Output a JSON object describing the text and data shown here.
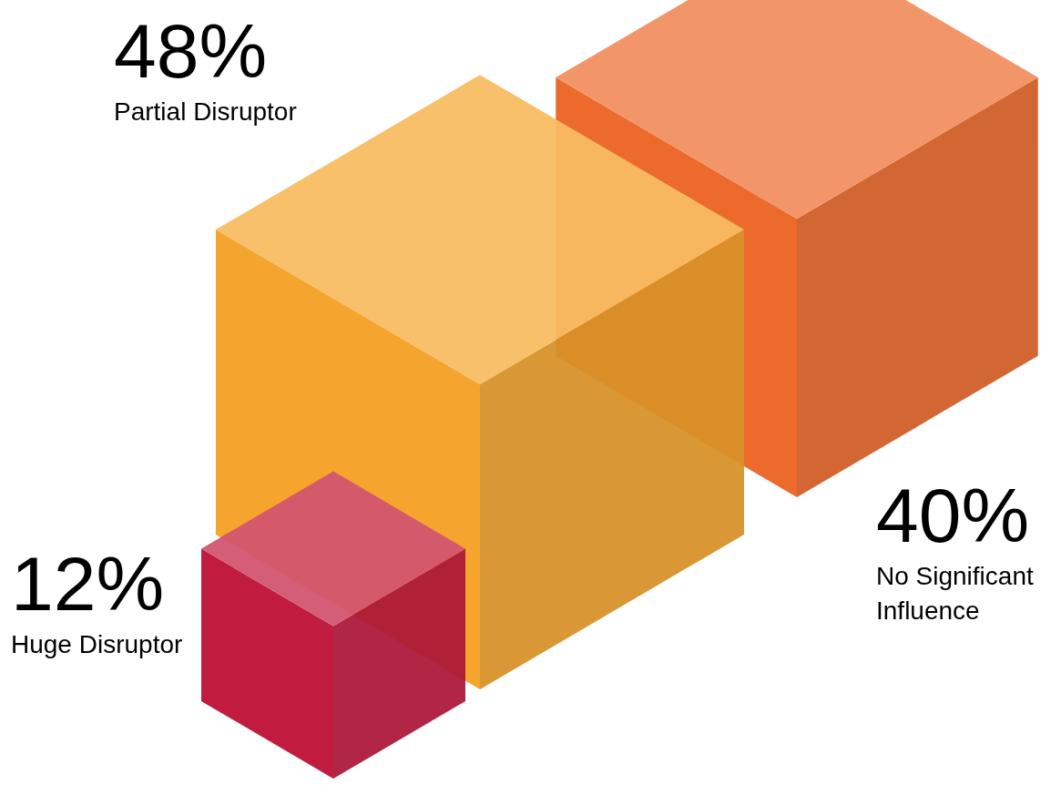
{
  "chart_data": {
    "type": "other",
    "categories": [
      "Partial Disruptor",
      "No Significant Influence",
      "Huge Disruptor"
    ],
    "values": [
      48,
      40,
      12
    ],
    "value_labels": [
      "48%",
      "40%",
      "12%"
    ],
    "colors": [
      "#f5a52e",
      "#ec6a2c",
      "#c21b40"
    ]
  }
}
